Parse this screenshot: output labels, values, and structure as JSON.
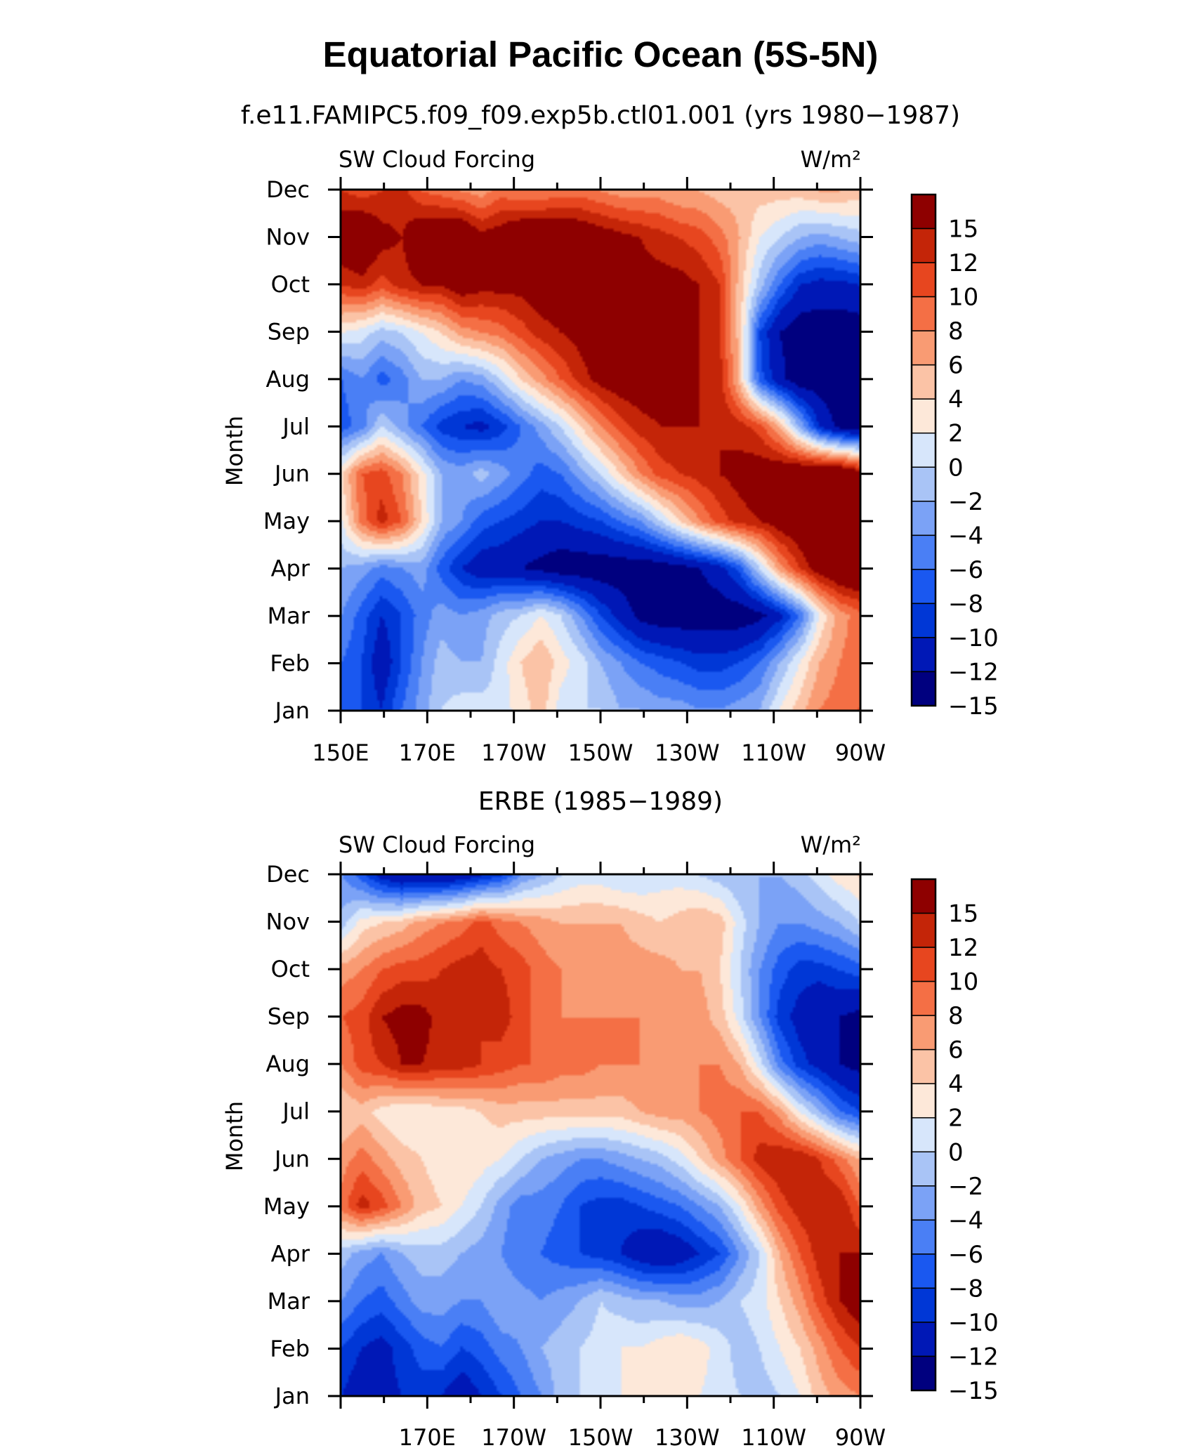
{
  "figure": {
    "title": "Equatorial Pacific Ocean (5S-5N)"
  },
  "palette": [
    "#00007f",
    "#0018b6",
    "#0037d6",
    "#1a58f0",
    "#4a7ff5",
    "#7ba2f6",
    "#a9c4f6",
    "#d7e6fb",
    "#fde8d9",
    "#fbc3a6",
    "#f99b73",
    "#f46f45",
    "#e7461f",
    "#c42508",
    "#8e0000"
  ],
  "colorbar_labels": [
    "15",
    "12",
    "10",
    "8",
    "6",
    "4",
    "2",
    "0",
    "−2",
    "−4",
    "−6",
    "−8",
    "−10",
    "−12",
    "−15"
  ],
  "chart_data": [
    {
      "type": "heatmap",
      "subtitle": "f.e11.FAMIPC5.f09_f09.exp5b.ctl01.001 (yrs 1980−1987)",
      "left_label": "SW Cloud Forcing",
      "right_label": "W/m²",
      "ylabel": "Month",
      "months": [
        "Jan",
        "Feb",
        "Mar",
        "Apr",
        "May",
        "Jun",
        "Jul",
        "Aug",
        "Sep",
        "Oct",
        "Nov",
        "Dec"
      ],
      "x_tick_labels": [
        "150E",
        "170E",
        "170W",
        "150W",
        "130W",
        "110W",
        "90W"
      ],
      "x_lon": [
        150,
        270
      ],
      "levels": [
        -15,
        -12,
        -10,
        -8,
        -6,
        -4,
        -2,
        0,
        2,
        4,
        6,
        8,
        10,
        12,
        15
      ],
      "grid": [
        [
          -10,
          -10,
          -12,
          -8,
          -5,
          -2,
          -1,
          -1,
          -1,
          1,
          3,
          -1,
          -2,
          -2,
          -4,
          -4,
          -5,
          -5,
          -6,
          -6,
          -5,
          -4,
          0,
          3,
          6,
          7,
          8
        ],
        [
          -8,
          -10,
          -14,
          -10,
          -6,
          -3,
          -4,
          -4,
          -1,
          2,
          4,
          1,
          -1,
          -4,
          -6,
          -8,
          -9,
          -10,
          -11,
          -11,
          -10,
          -8,
          -4,
          0,
          4,
          6,
          7
        ],
        [
          -6,
          -9,
          -12,
          -10,
          -7,
          -5,
          -6,
          -5,
          -3,
          -2,
          0,
          -2,
          -6,
          -10,
          -13,
          -16,
          -17,
          -17,
          -17,
          -17,
          -17,
          -16,
          -13,
          -8,
          0,
          5,
          7
        ],
        [
          -4,
          -5,
          -7,
          -6,
          -5,
          -9,
          -12,
          -14,
          -14,
          -15,
          -16,
          -17,
          -17,
          -17,
          -17,
          -17,
          -17,
          -16,
          -15,
          -13,
          -9,
          -2,
          5,
          10,
          14,
          16,
          17
        ],
        [
          0,
          7,
          11,
          8,
          2,
          -4,
          -6,
          -9,
          -10,
          -11,
          -12,
          -12,
          -11,
          -10,
          -8,
          -6,
          -2,
          2,
          6,
          9,
          11,
          12,
          14,
          15,
          16,
          17,
          17
        ],
        [
          2,
          8,
          9,
          6,
          1,
          -4,
          -5,
          -3,
          -5,
          -7,
          -9,
          -8,
          -5,
          -2,
          2,
          6,
          9,
          10,
          11,
          12,
          13,
          14,
          15,
          16,
          17,
          17,
          14
        ],
        [
          -9,
          -7,
          -2,
          -5,
          -8,
          -11,
          -12,
          -13,
          -11,
          -8,
          -5,
          -2,
          2,
          6,
          9,
          11,
          12,
          12,
          12,
          12,
          11,
          9,
          4,
          -4,
          -12,
          -16,
          -17
        ],
        [
          -8,
          -6,
          -9,
          -7,
          -4,
          -4,
          -6,
          -5,
          -2,
          2,
          5,
          8,
          11,
          13,
          14,
          14,
          14,
          12,
          12,
          11,
          3,
          -9,
          -14,
          -17,
          -17,
          -17,
          -17
        ],
        [
          0,
          -1,
          -3,
          -2,
          0,
          2,
          5,
          6,
          7,
          9,
          11,
          12,
          13,
          14,
          14,
          14,
          14,
          13,
          12,
          10,
          3,
          -10,
          -15,
          -17,
          -17,
          -17,
          -17
        ],
        [
          10,
          11,
          9,
          11,
          12,
          12,
          14,
          13,
          13,
          13,
          14,
          14,
          14,
          15,
          14,
          13,
          13,
          13,
          12,
          10,
          3,
          -3,
          -8,
          -12,
          -13,
          -13,
          -12
        ],
        [
          15,
          16,
          13,
          12,
          15,
          16,
          16,
          13,
          14,
          16,
          16,
          16,
          15,
          14,
          13,
          12,
          11,
          10,
          9,
          7,
          4,
          0,
          -2,
          -4,
          -5,
          -4,
          -3
        ],
        [
          10,
          9,
          10,
          11,
          8,
          7,
          6,
          5,
          7,
          6,
          6,
          7,
          7,
          6,
          5,
          5,
          5,
          4,
          4,
          3,
          3,
          3,
          3,
          3,
          4,
          4,
          3
        ]
      ]
    },
    {
      "type": "heatmap",
      "subtitle": "ERBE (1985−1989)",
      "left_label": "SW Cloud Forcing",
      "right_label": "W/m²",
      "ylabel": "Month",
      "months": [
        "Jan",
        "Feb",
        "Mar",
        "Apr",
        "May",
        "Jun",
        "Jul",
        "Aug",
        "Sep",
        "Oct",
        "Nov",
        "Dec"
      ],
      "x_tick_labels": [
        "170E",
        "170W",
        "150W",
        "130W",
        "110W",
        "90W"
      ],
      "x_lon": [
        150,
        270
      ],
      "levels": [
        -15,
        -12,
        -10,
        -8,
        -6,
        -4,
        -2,
        0,
        2,
        4,
        6,
        8,
        10,
        12,
        15
      ],
      "grid": [
        [
          -12,
          -14,
          -13,
          -12,
          -11,
          -12,
          -14,
          -12,
          -10,
          -8,
          -6,
          -3,
          -2,
          -1,
          0,
          0,
          0,
          1,
          0,
          -1,
          -2,
          -3,
          -2,
          0,
          3,
          5,
          6
        ],
        [
          -10,
          -12,
          -13,
          -11,
          -9,
          -8,
          -10,
          -9,
          -7,
          -6,
          -4,
          -3,
          -2,
          -1,
          0,
          0,
          1,
          2,
          1,
          -1,
          -3,
          -2,
          0,
          2,
          5,
          8,
          10
        ],
        [
          -6,
          -8,
          -9,
          -7,
          -5,
          -5,
          -6,
          -6,
          -4,
          -5,
          -6,
          -5,
          -4,
          -2,
          -3,
          -4,
          -4,
          -5,
          -5,
          -4,
          -2,
          -1,
          2,
          5,
          9,
          12,
          14
        ],
        [
          -3,
          -5,
          -6,
          -4,
          -3,
          -3,
          -4,
          -5,
          -6,
          -8,
          -8,
          -9,
          -10,
          -11,
          -12,
          -14,
          -15,
          -14,
          -12,
          -10,
          -6,
          -2,
          4,
          8,
          11,
          12,
          12
        ],
        [
          7,
          11,
          9,
          6,
          3,
          2,
          0,
          -2,
          -5,
          -7,
          -7,
          -8,
          -10,
          -11,
          -11,
          -10,
          -9,
          -8,
          -6,
          -4,
          0,
          5,
          9,
          11,
          12,
          12,
          8
        ],
        [
          5,
          7,
          5,
          3,
          2,
          1,
          2,
          1,
          0,
          -2,
          -4,
          -5,
          -6,
          -6,
          -5,
          -4,
          -3,
          -1,
          2,
          5,
          8,
          11,
          12,
          12,
          10,
          7,
          4
        ],
        [
          2,
          3,
          1,
          0,
          0,
          1,
          1,
          2,
          3,
          3,
          3,
          3,
          3,
          3,
          3,
          4,
          5,
          5,
          6,
          7,
          8,
          8,
          5,
          0,
          -4,
          -8,
          -10
        ],
        [
          6,
          9,
          10,
          12,
          12,
          11,
          11,
          10,
          9,
          8,
          8,
          7,
          7,
          6,
          6,
          6,
          6,
          6,
          6,
          6,
          4,
          -1,
          -7,
          -11,
          -13,
          -15,
          -16
        ],
        [
          8,
          9,
          12,
          13,
          13,
          11,
          11,
          10,
          11,
          9,
          7,
          6,
          6,
          6,
          6,
          6,
          5,
          5,
          5,
          3,
          -1,
          -6,
          -11,
          -13,
          -15,
          -15,
          -16
        ],
        [
          5,
          6,
          8,
          9,
          9,
          10,
          11,
          11,
          10,
          9,
          7,
          6,
          5,
          5,
          5,
          5,
          5,
          4,
          4,
          2,
          -2,
          -6,
          -9,
          -11,
          -11,
          -10,
          -9
        ],
        [
          -3,
          1,
          2,
          3,
          5,
          6,
          7,
          9,
          7,
          6,
          5,
          4,
          4,
          4,
          4,
          3,
          2,
          3,
          4,
          3,
          -1,
          -4,
          -6,
          -6,
          -5,
          -4,
          -2
        ],
        [
          -6,
          -9,
          -13,
          -15,
          -15,
          -15,
          -14,
          -12,
          -10,
          -6,
          -4,
          -2,
          -1,
          -1,
          -2,
          -2,
          -1,
          -1,
          -2,
          -3,
          -4,
          -4,
          -4,
          -3,
          -1,
          1,
          2
        ]
      ]
    }
  ]
}
